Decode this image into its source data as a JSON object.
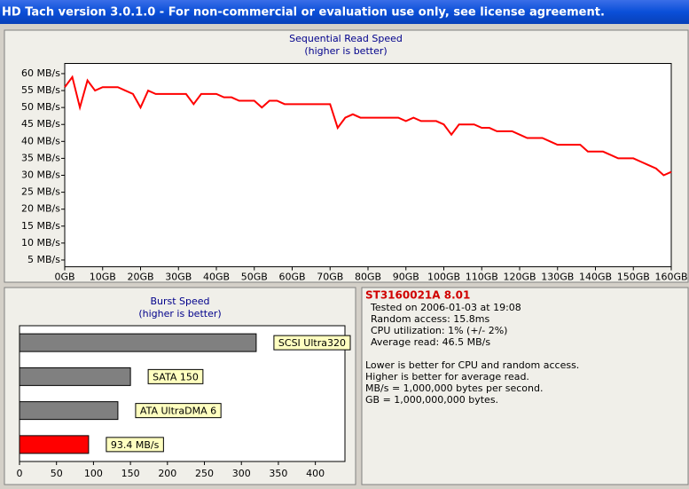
{
  "window": {
    "title": "HD Tach version 3.0.1.0  - For non-commercial or evaluation use only, see license agreement."
  },
  "chart_data": [
    {
      "type": "line",
      "title": "Sequential Read Speed",
      "subtitle": "(higher is better)",
      "color": "#ff0000",
      "xlim": [
        0,
        160
      ],
      "ylim": [
        3,
        63
      ],
      "xticks": [
        {
          "value": 0,
          "label": "0GB"
        },
        {
          "value": 10,
          "label": "10GB"
        },
        {
          "value": 20,
          "label": "20GB"
        },
        {
          "value": 30,
          "label": "30GB"
        },
        {
          "value": 40,
          "label": "40GB"
        },
        {
          "value": 50,
          "label": "50GB"
        },
        {
          "value": 60,
          "label": "60GB"
        },
        {
          "value": 70,
          "label": "70GB"
        },
        {
          "value": 80,
          "label": "80GB"
        },
        {
          "value": 90,
          "label": "90GB"
        },
        {
          "value": 100,
          "label": "100GB"
        },
        {
          "value": 110,
          "label": "110GB"
        },
        {
          "value": 120,
          "label": "120GB"
        },
        {
          "value": 130,
          "label": "130GB"
        },
        {
          "value": 140,
          "label": "140GB"
        },
        {
          "value": 150,
          "label": "150GB"
        },
        {
          "value": 160,
          "label": "160GB"
        }
      ],
      "yticks": [
        {
          "value": 5,
          "label": "5 MB/s"
        },
        {
          "value": 10,
          "label": "10 MB/s"
        },
        {
          "value": 15,
          "label": "15 MB/s"
        },
        {
          "value": 20,
          "label": "20 MB/s"
        },
        {
          "value": 25,
          "label": "25 MB/s"
        },
        {
          "value": 30,
          "label": "30 MB/s"
        },
        {
          "value": 35,
          "label": "35 MB/s"
        },
        {
          "value": 40,
          "label": "40 MB/s"
        },
        {
          "value": 45,
          "label": "45 MB/s"
        },
        {
          "value": 50,
          "label": "50 MB/s"
        },
        {
          "value": 55,
          "label": "55 MB/s"
        },
        {
          "value": 60,
          "label": "60 MB/s"
        }
      ],
      "x": [
        0,
        2,
        4,
        6,
        8,
        10,
        12,
        14,
        16,
        18,
        20,
        22,
        24,
        26,
        28,
        30,
        32,
        34,
        36,
        38,
        40,
        42,
        44,
        46,
        48,
        50,
        52,
        54,
        56,
        58,
        60,
        62,
        64,
        66,
        68,
        70,
        72,
        74,
        76,
        78,
        80,
        82,
        84,
        86,
        88,
        90,
        92,
        94,
        96,
        98,
        100,
        102,
        104,
        106,
        108,
        110,
        112,
        114,
        116,
        118,
        120,
        122,
        124,
        126,
        128,
        130,
        132,
        134,
        136,
        138,
        140,
        142,
        144,
        146,
        148,
        150,
        152,
        154,
        156,
        158,
        160
      ],
      "values": [
        56,
        59,
        50,
        58,
        55,
        56,
        56,
        56,
        55,
        54,
        50,
        55,
        54,
        54,
        54,
        54,
        54,
        51,
        54,
        54,
        54,
        53,
        53,
        52,
        52,
        52,
        50,
        52,
        52,
        51,
        51,
        51,
        51,
        51,
        51,
        51,
        44,
        47,
        48,
        47,
        47,
        47,
        47,
        47,
        47,
        46,
        47,
        46,
        46,
        46,
        45,
        42,
        45,
        45,
        45,
        44,
        44,
        43,
        43,
        43,
        42,
        41,
        41,
        41,
        40,
        39,
        39,
        39,
        39,
        37,
        37,
        37,
        36,
        35,
        35,
        35,
        34,
        33,
        32,
        30,
        31
      ]
    },
    {
      "type": "hbar",
      "title": "Burst Speed",
      "subtitle": "(higher is better)",
      "categories": [
        "SCSI Ultra320",
        "SATA 150",
        "ATA UltraDMA 6",
        null
      ],
      "values": [
        320,
        150,
        133,
        93.4
      ],
      "value_labels": [
        null,
        null,
        null,
        "93.4 MB/s"
      ],
      "colors": [
        "#808080",
        "#808080",
        "#808080",
        "#ff0000"
      ],
      "xlim": [
        0,
        440
      ],
      "xticks": [
        0,
        50,
        100,
        150,
        200,
        250,
        300,
        350,
        400
      ]
    }
  ],
  "info": {
    "drive": "ST3160021A 8.01",
    "lines": [
      "Tested on 2006-01-03 at 19:08",
      "Random access: 15.8ms",
      "CPU utilization: 1% (+/- 2%)",
      "Average read: 46.5 MB/s"
    ],
    "notes": [
      "Lower is better for CPU and random access.",
      "Higher is better for average read.",
      "MB/s = 1,000,000 bytes per second.",
      "GB = 1,000,000,000 bytes."
    ]
  }
}
